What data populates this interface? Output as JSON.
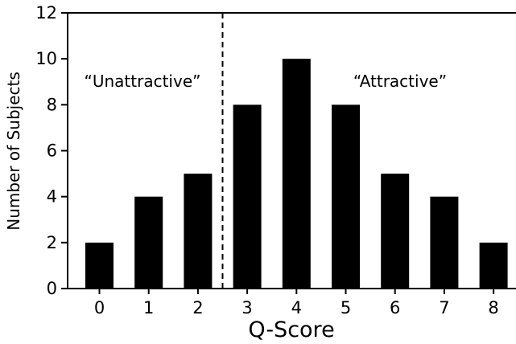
{
  "chart_data": {
    "type": "bar",
    "categories": [
      "0",
      "1",
      "2",
      "3",
      "4",
      "5",
      "6",
      "7",
      "8"
    ],
    "values": [
      2,
      4,
      5,
      8,
      10,
      8,
      5,
      4,
      2
    ],
    "xlabel": "Q-Score",
    "ylabel": "Number of Subjects",
    "ylim": [
      0,
      12
    ],
    "yticks": [
      "0",
      "2",
      "4",
      "6",
      "8",
      "10",
      "12"
    ],
    "bar_color": "#000000",
    "grid": false,
    "divider_between": [
      "2",
      "3"
    ],
    "annotations": [
      {
        "text": "“Unattractive”",
        "region": "left of divider"
      },
      {
        "text": "“Attractive”",
        "region": "right of divider"
      }
    ]
  }
}
